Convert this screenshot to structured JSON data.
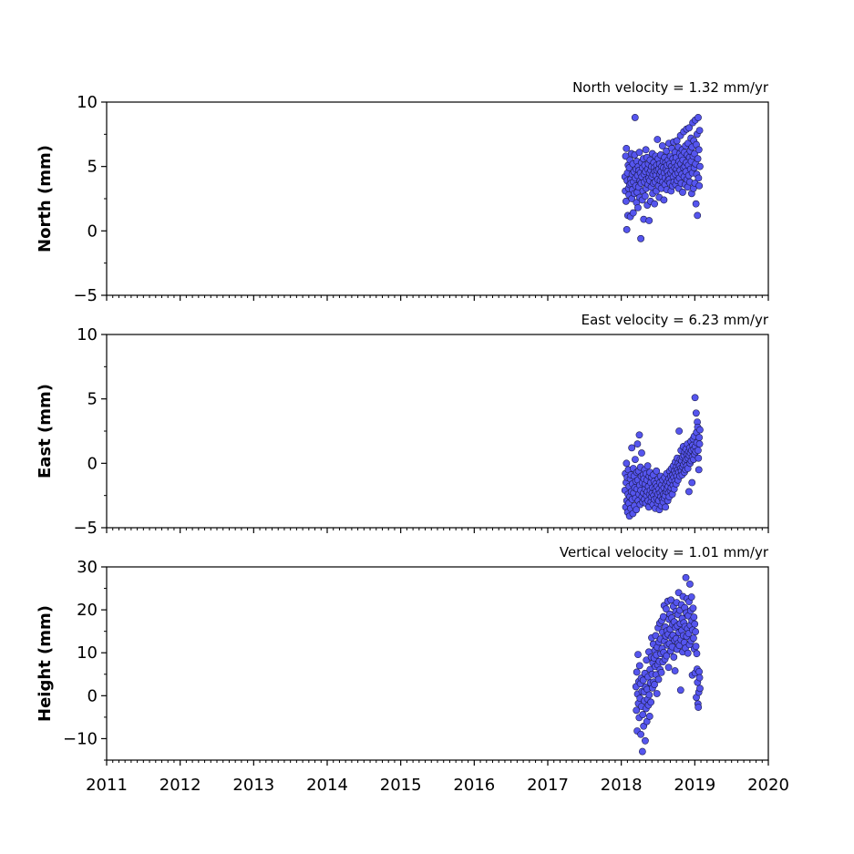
{
  "chart_data": [
    {
      "type": "scatter",
      "title": "North velocity = 1.32 mm/yr",
      "ylabel": "North (mm)",
      "xlim": [
        2011,
        2020
      ],
      "ylim": [
        -5,
        10
      ],
      "yticks": [
        -5,
        0,
        5,
        10
      ],
      "x_start": 2018.05,
      "x_end": 2019.07,
      "y": [
        4.2,
        3.1,
        5.8,
        2.3,
        6.4,
        0.1,
        3.9,
        4.5,
        1.2,
        5.1,
        3.3,
        2.8,
        4.9,
        3.6,
        5.5,
        1.1,
        4.0,
        3.7,
        6.0,
        2.5,
        4.4,
        3.2,
        5.2,
        1.4,
        3.8,
        4.6,
        2.9,
        5.9,
        8.8,
        4.1,
        3.5,
        4.8,
        2.2,
        5.4,
        3.0,
        4.3,
        1.8,
        5.0,
        3.4,
        4.7,
        6.1,
        2.6,
        3.9,
        4.5,
        -0.6,
        3.7,
        5.3,
        4.2,
        2.4,
        4.9,
        3.1,
        5.6,
        0.9,
        4.4,
        3.8,
        5.1,
        2.7,
        4.6,
        6.3,
        3.3,
        4.0,
        5.7,
        2.0,
        4.8,
        3.6,
        5.2,
        4.1,
        0.8,
        4.5,
        3.9,
        5.5,
        2.3,
        4.7,
        3.4,
        5.0,
        4.2,
        6.0,
        2.9,
        4.4,
        3.7,
        5.3,
        4.9,
        2.1,
        4.6,
        3.8,
        5.8,
        4.3,
        3.1,
        5.1,
        4.7,
        7.1,
        4.0,
        5.6,
        3.5,
        4.8,
        2.6,
        5.2,
        4.4,
        3.9,
        5.9,
        4.6,
        3.3,
        5.0,
        4.2,
        6.6,
        3.8,
        5.4,
        4.9,
        2.4,
        4.5,
        5.7,
        3.6,
        4.1,
        5.3,
        4.8,
        6.2,
        3.2,
        5.1,
        4.6,
        3.9,
        5.5,
        4.3,
        6.8,
        4.0,
        5.2,
        3.7,
        5.8,
        4.5,
        3.1,
        5.0,
        6.4,
        4.7,
        3.5,
        5.6,
        4.2,
        6.9,
        3.8,
        5.3,
        4.9,
        6.1,
        4.4,
        3.6,
        5.7,
        4.8,
        7.0,
        3.9,
        5.1,
        4.5,
        6.5,
        3.3,
        5.4,
        4.1,
        6.0,
        4.7,
        7.4,
        5.2,
        3.7,
        5.8,
        4.4,
        6.3,
        3.0,
        5.5,
        4.9,
        7.7,
        4.2,
        6.1,
        5.0,
        3.6,
        6.6,
        4.6,
        5.3,
        7.9,
        4.0,
        5.9,
        3.4,
        6.8,
        5.1,
        4.3,
        8.0,
        5.7,
        3.8,
        6.2,
        4.8,
        7.2,
        5.4,
        2.9,
        6.5,
        4.5,
        8.4,
        5.8,
        3.3,
        7.0,
        4.9,
        6.0,
        3.7,
        8.6,
        5.2,
        2.1,
        6.7,
        4.4,
        7.5,
        1.2,
        5.6,
        8.8,
        4.1,
        6.3,
        3.5,
        7.8,
        5.0
      ]
    },
    {
      "type": "scatter",
      "title": "East velocity = 6.23 mm/yr",
      "ylabel": "East (mm)",
      "xlim": [
        2011,
        2020
      ],
      "ylim": [
        -5,
        10
      ],
      "yticks": [
        -5,
        0,
        5,
        10
      ],
      "x_start": 2018.05,
      "x_end": 2019.07,
      "y": [
        -2.1,
        -0.8,
        -3.4,
        -1.5,
        0.0,
        -2.9,
        -1.1,
        -3.8,
        -2.4,
        -0.5,
        -3.1,
        -1.8,
        -4.1,
        -2.6,
        -1.2,
        -3.5,
        -0.9,
        -2.2,
        1.2,
        -2.8,
        -1.6,
        -3.9,
        -0.4,
        -2.3,
        -1.0,
        -3.3,
        -1.9,
        0.3,
        -2.7,
        -1.4,
        -3.6,
        -0.7,
        -2.0,
        1.5,
        -1.3,
        -2.9,
        -0.6,
        -2.4,
        2.2,
        -1.7,
        -3.2,
        -0.3,
        -2.1,
        -1.0,
        0.8,
        -2.6,
        -1.5,
        -3.0,
        -0.9,
        -2.3,
        -1.2,
        -2.8,
        -0.5,
        -2.0,
        -1.6,
        -3.1,
        -0.8,
        -2.5,
        -1.3,
        -2.2,
        -0.2,
        -2.9,
        -1.8,
        -3.4,
        -1.0,
        -2.4,
        -0.7,
        -2.1,
        -1.5,
        -3.0,
        -2.6,
        -1.1,
        -2.3,
        -1.9,
        -3.2,
        -0.9,
        -2.5,
        -1.4,
        -2.8,
        -2.0,
        -3.5,
        -1.6,
        -2.2,
        -0.6,
        -2.7,
        -1.8,
        -3.1,
        -2.4,
        -1.2,
        -2.9,
        -2.0,
        -3.6,
        -1.5,
        -2.3,
        -1.0,
        -2.6,
        -3.3,
        -1.7,
        -2.1,
        -2.8,
        -1.3,
        -3.0,
        -2.4,
        -1.9,
        -2.7,
        -1.1,
        -2.5,
        -3.4,
        -1.6,
        -2.2,
        -0.8,
        -2.0,
        -1.4,
        -2.9,
        -1.8,
        -2.3,
        -1.2,
        -2.6,
        -0.6,
        -1.5,
        -2.1,
        -1.0,
        -1.9,
        -0.4,
        -1.3,
        -2.4,
        -0.9,
        -1.7,
        -0.2,
        -1.1,
        -2.0,
        -0.6,
        -1.4,
        0.1,
        -0.8,
        -1.6,
        -0.3,
        -1.0,
        0.4,
        -0.5,
        -1.3,
        0.0,
        -0.7,
        2.5,
        -0.2,
        -1.0,
        0.3,
        -0.4,
        1.0,
        -0.6,
        0.2,
        -0.9,
        0.5,
        -0.3,
        1.3,
        -0.1,
        0.6,
        -0.7,
        0.9,
        0.1,
        -0.5,
        1.1,
        0.3,
        -0.2,
        0.7,
        1.5,
        -0.4,
        0.4,
        0.9,
        -2.2,
        0.6,
        1.2,
        0.0,
        0.8,
        1.7,
        0.2,
        1.0,
        -1.5,
        0.5,
        1.4,
        1.9,
        0.3,
        1.1,
        2.1,
        0.7,
        5.1,
        1.3,
        0.9,
        3.9,
        2.4,
        1.6,
        3.2,
        2.8,
        1.0,
        0.4,
        -0.5,
        2.0,
        1.5,
        2.6
      ]
    },
    {
      "type": "scatter",
      "title": "Vertical velocity = 1.01 mm/yr",
      "ylabel": "Height (mm)",
      "xlim": [
        2011,
        2020
      ],
      "ylim": [
        -15,
        30
      ],
      "yticks": [
        -10,
        0,
        10,
        20,
        30
      ],
      "x_start": 2018.2,
      "x_end": 2019.07,
      "y": [
        2.1,
        -3.4,
        5.5,
        -8.2,
        0.4,
        9.6,
        -1.8,
        3.3,
        -5.1,
        7.0,
        -0.6,
        2.8,
        -9.0,
        4.1,
        -2.5,
        1.0,
        -13.0,
        -4.4,
        3.6,
        -7.1,
        0.9,
        -1.2,
        5.2,
        -10.5,
        2.0,
        -3.0,
        8.3,
        -6.0,
        1.5,
        -0.8,
        4.4,
        -2.2,
        10.2,
        0.2,
        -4.8,
        6.1,
        3.0,
        -1.5,
        9.0,
        13.5,
        5.0,
        1.8,
        7.6,
        12.0,
        3.2,
        8.8,
        2.6,
        10.5,
        6.8,
        14.0,
        4.9,
        9.5,
        0.5,
        11.3,
        7.2,
        15.8,
        3.8,
        12.5,
        8.0,
        16.9,
        6.1,
        13.2,
        9.8,
        5.4,
        17.5,
        11.0,
        14.8,
        7.9,
        18.4,
        10.1,
        21.0,
        12.7,
        8.5,
        16.0,
        13.9,
        20.2,
        9.3,
        15.1,
        11.8,
        22.0,
        14.3,
        6.6,
        17.8,
        12.1,
        19.0,
        15.5,
        10.4,
        22.3,
        13.6,
        18.1,
        11.4,
        16.6,
        14.1,
        20.8,
        9.0,
        17.2,
        12.9,
        5.8,
        15.9,
        19.6,
        13.3,
        21.7,
        10.8,
        16.3,
        18.9,
        12.2,
        24.0,
        14.7,
        11.7,
        19.9,
        16.8,
        1.3,
        13.0,
        21.2,
        15.2,
        18.0,
        10.2,
        23.1,
        14.0,
        17.0,
        12.4,
        20.5,
        16.1,
        11.1,
        27.5,
        19.3,
        13.8,
        22.6,
        15.6,
        9.9,
        18.6,
        14.5,
        21.9,
        11.9,
        26.0,
        16.4,
        19.8,
        12.8,
        23.0,
        17.5,
        4.8,
        15.3,
        20.4,
        13.4,
        18.3,
        10.9,
        16.7,
        5.3,
        14.9,
        11.5,
        -0.4,
        9.8,
        6.2,
        3.1,
        -1.9,
        -2.7,
        0.8,
        5.6,
        4.2,
        1.7
      ]
    }
  ],
  "x_ticks": [
    "2011",
    "2012",
    "2013",
    "2014",
    "2015",
    "2016",
    "2017",
    "2018",
    "2019",
    "2020"
  ],
  "dot_color": "#5555ee",
  "dot_edge_color": "#1a1a4d"
}
